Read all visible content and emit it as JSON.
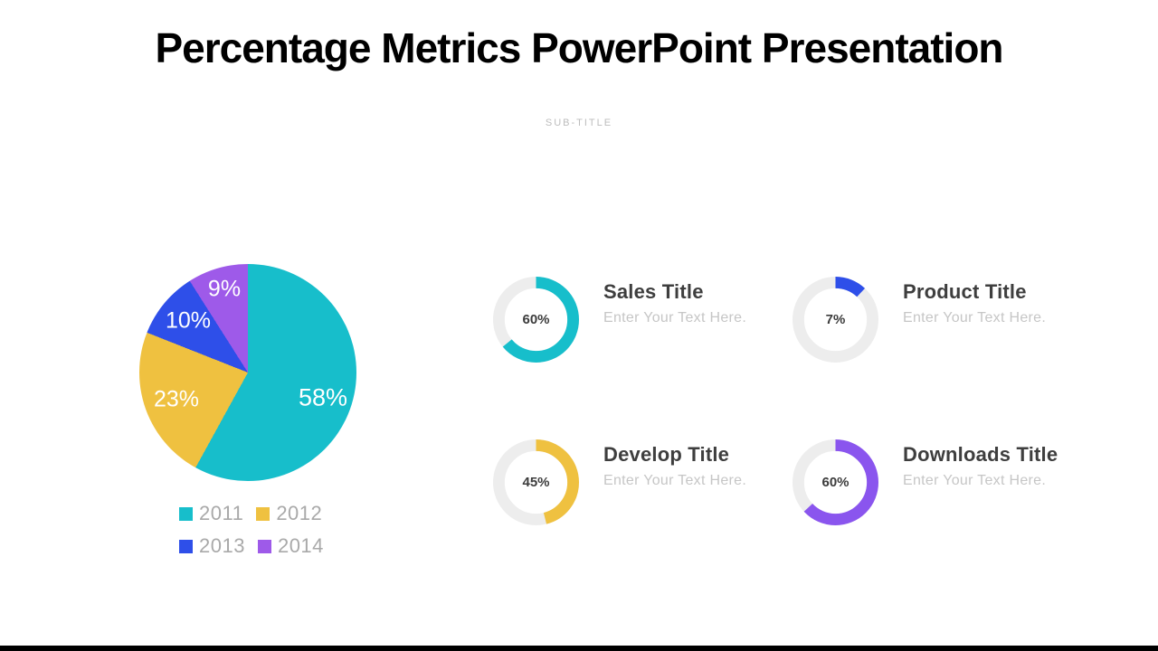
{
  "page": {
    "title": "Percentage Metrics PowerPoint Presentation",
    "subtitle": "SUB-TITLE"
  },
  "colors": {
    "teal": "#17becb",
    "yellow": "#efc140",
    "blue": "#2e4fe9",
    "purple": "#9e5ae9",
    "purple_ring": "#8a55ee",
    "ring_track": "#ededed",
    "footer_bar": "#000000"
  },
  "chart_data": [
    {
      "type": "pie",
      "title": "Yearly percentage breakdown",
      "categories": [
        "2011",
        "2012",
        "2013",
        "2014"
      ],
      "values": [
        58,
        23,
        10,
        9
      ],
      "labels": [
        "58%",
        "23%",
        "10%",
        "9%"
      ],
      "colors": [
        "#17becb",
        "#efc140",
        "#2e4fe9",
        "#9e5ae9"
      ],
      "start_angle_deg": 0,
      "direction": "clockwise",
      "legend_position": "bottom-left"
    },
    {
      "type": "donut",
      "title": "Sales Title",
      "subtitle": "Enter Your Text Here.",
      "value": 60,
      "label": "60%",
      "color": "#17becb",
      "arc_percent": 64
    },
    {
      "type": "donut",
      "title": "Product Title",
      "subtitle": "Enter Your Text Here.",
      "value": 7,
      "label": "7%",
      "color": "#2e4fe9",
      "arc_percent": 12
    },
    {
      "type": "donut",
      "title": "Develop Title",
      "subtitle": "Enter Your Text Here.",
      "value": 45,
      "label": "45%",
      "color": "#efc140",
      "arc_percent": 46
    },
    {
      "type": "donut",
      "title": "Downloads Title",
      "subtitle": "Enter Your Text Here.",
      "value": 60,
      "label": "60%",
      "color": "#8a55ee",
      "arc_percent": 63
    }
  ]
}
